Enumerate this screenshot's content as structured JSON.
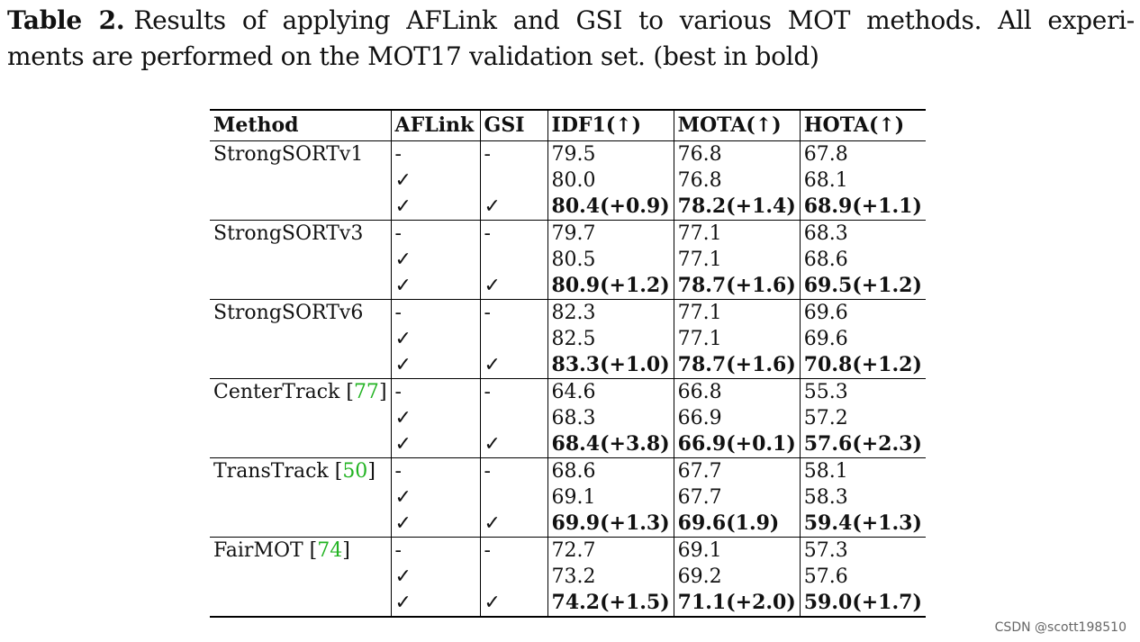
{
  "caption": {
    "label": "Table 2.",
    "line1": "Results of applying AFLink and GSI to various MOT methods. All experi-",
    "line2": "ments are performed on the MOT17 validation set. (best in bold)"
  },
  "table": {
    "headers": [
      "Method",
      "AFLink",
      "GSI",
      "IDF1(↑)",
      "MOTA(↑)",
      "HOTA(↑)"
    ],
    "groups": [
      {
        "method": "StrongSORTv1",
        "cite": "",
        "rows": [
          {
            "aflink": "-",
            "gsi": "-",
            "idf1": "79.5",
            "mota": "76.8",
            "hota": "67.8"
          },
          {
            "aflink": "✓",
            "gsi": "",
            "idf1": "80.0",
            "mota": "76.8",
            "hota": "68.1"
          },
          {
            "aflink": "✓",
            "gsi": "✓",
            "idf1": "80.4(+0.9)",
            "mota": "78.2(+1.4)",
            "hota": "68.9(+1.1)"
          }
        ]
      },
      {
        "method": "StrongSORTv3",
        "cite": "",
        "rows": [
          {
            "aflink": "-",
            "gsi": "-",
            "idf1": "79.7",
            "mota": "77.1",
            "hota": "68.3"
          },
          {
            "aflink": "✓",
            "gsi": "",
            "idf1": "80.5",
            "mota": "77.1",
            "hota": "68.6"
          },
          {
            "aflink": "✓",
            "gsi": "✓",
            "idf1": "80.9(+1.2)",
            "mota": "78.7(+1.6)",
            "hota": "69.5(+1.2)"
          }
        ]
      },
      {
        "method": "StrongSORTv6",
        "cite": "",
        "rows": [
          {
            "aflink": "-",
            "gsi": "-",
            "idf1": "82.3",
            "mota": "77.1",
            "hota": "69.6"
          },
          {
            "aflink": "✓",
            "gsi": "",
            "idf1": "82.5",
            "mota": "77.1",
            "hota": "69.6"
          },
          {
            "aflink": "✓",
            "gsi": "✓",
            "idf1": "83.3(+1.0)",
            "mota": "78.7(+1.6)",
            "hota": "70.8(+1.2)"
          }
        ]
      },
      {
        "method": "CenterTrack",
        "cite": "77",
        "rows": [
          {
            "aflink": "-",
            "gsi": "-",
            "idf1": "64.6",
            "mota": "66.8",
            "hota": "55.3"
          },
          {
            "aflink": "✓",
            "gsi": "",
            "idf1": "68.3",
            "mota": "66.9",
            "hota": "57.2"
          },
          {
            "aflink": "✓",
            "gsi": "✓",
            "idf1": "68.4(+3.8)",
            "mota": "66.9(+0.1)",
            "hota": "57.6(+2.3)"
          }
        ]
      },
      {
        "method": "TransTrack",
        "cite": "50",
        "rows": [
          {
            "aflink": "-",
            "gsi": "-",
            "idf1": "68.6",
            "mota": "67.7",
            "hota": "58.1"
          },
          {
            "aflink": "✓",
            "gsi": "",
            "idf1": "69.1",
            "mota": "67.7",
            "hota": "58.3"
          },
          {
            "aflink": "✓",
            "gsi": "✓",
            "idf1": "69.9(+1.3)",
            "mota": "69.6(1.9)",
            "hota": "59.4(+1.3)"
          }
        ]
      },
      {
        "method": "FairMOT",
        "cite": "74",
        "rows": [
          {
            "aflink": "-",
            "gsi": "-",
            "idf1": "72.7",
            "mota": "69.1",
            "hota": "57.3"
          },
          {
            "aflink": "✓",
            "gsi": "",
            "idf1": "73.2",
            "mota": "69.2",
            "hota": "57.6"
          },
          {
            "aflink": "✓",
            "gsi": "✓",
            "idf1": "74.2(+1.5)",
            "mota": "71.1(+2.0)",
            "hota": "59.0(+1.7)"
          }
        ]
      }
    ]
  },
  "watermark": "CSDN @scott198510",
  "colors": {
    "citation": "#22b322"
  }
}
